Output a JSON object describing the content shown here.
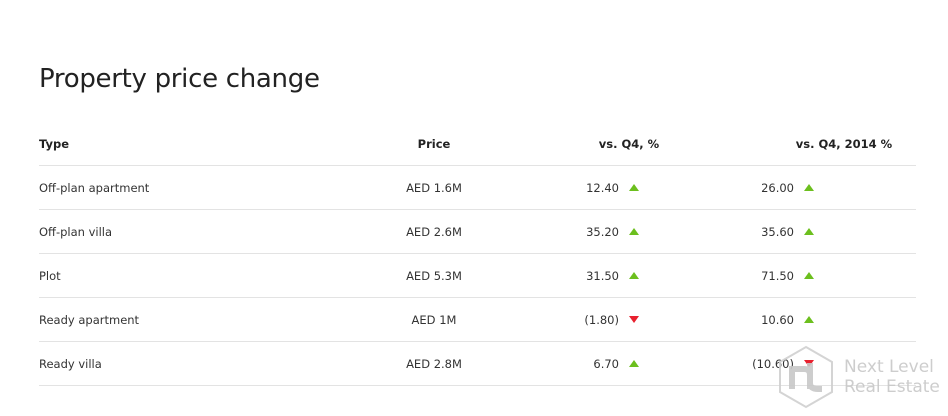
{
  "title": "Property price change",
  "columns": [
    "Type",
    "Price",
    "vs. Q4, %",
    "vs. Q4, 2014 %"
  ],
  "rows": [
    {
      "type": "Off-plan apartment",
      "price": "AED 1.6M",
      "vs_q4": "12.40",
      "vs_q4_dir": "up",
      "vs_2014": "26.00",
      "vs_2014_dir": "up"
    },
    {
      "type": "Off-plan villa",
      "price": "AED 2.6M",
      "vs_q4": "35.20",
      "vs_q4_dir": "up",
      "vs_2014": "35.60",
      "vs_2014_dir": "up"
    },
    {
      "type": "Plot",
      "price": "AED 5.3M",
      "vs_q4": "31.50",
      "vs_q4_dir": "up",
      "vs_2014": "71.50",
      "vs_2014_dir": "up"
    },
    {
      "type": "Ready apartment",
      "price": "AED 1M",
      "vs_q4": "(1.80)",
      "vs_q4_dir": "down",
      "vs_2014": "10.60",
      "vs_2014_dir": "up"
    },
    {
      "type": "Ready villa",
      "price": "AED 2.8M",
      "vs_q4": "6.70",
      "vs_q4_dir": "up",
      "vs_2014": "(10.60)",
      "vs_2014_dir": "down"
    }
  ],
  "colors": {
    "up": "#6cbf1e",
    "down": "#e8202e"
  },
  "watermark": {
    "logo_letters": "nl",
    "line1": "Next Level",
    "line2": "Real Estate"
  }
}
